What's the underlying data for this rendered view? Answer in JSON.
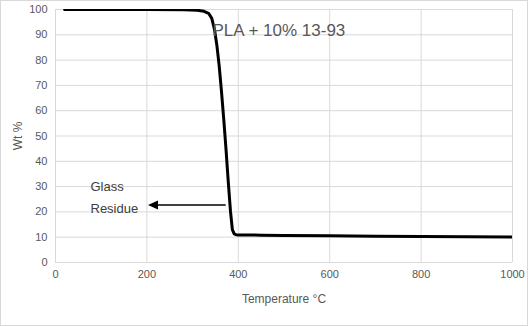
{
  "chart_data": {
    "type": "line",
    "xlabel": "Temperature °C",
    "ylabel": "Wt %",
    "annotations": [
      "PLA + 10% 13-93",
      "Glass\nResidue"
    ],
    "x": [
      20,
      100,
      200,
      280,
      310,
      325,
      335,
      342,
      348,
      353,
      358,
      363,
      368,
      373,
      378,
      383,
      387,
      391,
      395,
      400,
      450,
      500,
      600,
      700,
      800,
      900,
      1000
    ],
    "values": [
      100,
      100,
      100,
      99.9,
      99.7,
      99.3,
      98.5,
      96.5,
      92,
      86,
      78,
      68,
      57,
      45,
      32,
      20,
      13,
      11.3,
      11,
      10.9,
      10.8,
      10.7,
      10.6,
      10.4,
      10.3,
      10.2,
      10.1
    ],
    "color": "#000000",
    "xlim": [
      0,
      1000
    ],
    "xticks": [
      0,
      200,
      400,
      600,
      800,
      1000
    ],
    "ylim": [
      0,
      100
    ],
    "yticks": [
      0,
      10,
      20,
      30,
      40,
      50,
      60,
      70,
      80,
      90,
      100
    ],
    "grid": true
  }
}
